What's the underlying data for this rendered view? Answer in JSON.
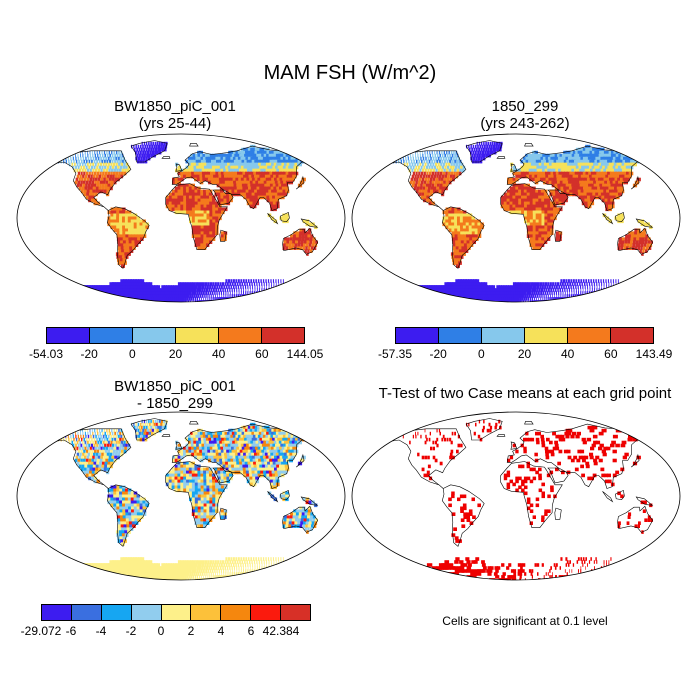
{
  "figure": {
    "title": "MAM FSH (W/m^2)"
  },
  "panels": {
    "top_left": {
      "title_line1": "BW1850_piC_001",
      "title_line2": "(yrs 25-44)",
      "colorbar": {
        "labels": [
          "-54.03",
          "-20",
          "0",
          "20",
          "40",
          "60",
          "144.05"
        ],
        "colors": [
          "#3d1cf0",
          "#2f7fe6",
          "#86c8ec",
          "#f6e15a",
          "#f47a1d",
          "#d3302a"
        ]
      }
    },
    "top_right": {
      "title_line1": "1850_299",
      "title_line2": "(yrs 243-262)",
      "colorbar": {
        "labels": [
          "-57.35",
          "-20",
          "0",
          "20",
          "40",
          "60",
          "143.49"
        ],
        "colors": [
          "#3d1cf0",
          "#2f7fe6",
          "#86c8ec",
          "#f6e15a",
          "#f47a1d",
          "#d3302a"
        ]
      }
    },
    "bottom_left": {
      "title_line1": "BW1850_piC_001",
      "title_line2": "- 1850_299",
      "colorbar": {
        "labels": [
          "-29.072",
          "-6",
          "-4",
          "-2",
          "0",
          "2",
          "4",
          "6",
          "42.384"
        ],
        "colors": [
          "#3d1cf0",
          "#3a6fe0",
          "#16a6f2",
          "#91cdee",
          "#fdf08a",
          "#fcc13a",
          "#f5870e",
          "#fb1a0d",
          "#d73027"
        ]
      }
    },
    "bottom_right": {
      "title": "T-Test of two Case means at each grid point",
      "note": "Cells are significant at 0.1 level",
      "significant_color": "#ee0000"
    }
  }
}
